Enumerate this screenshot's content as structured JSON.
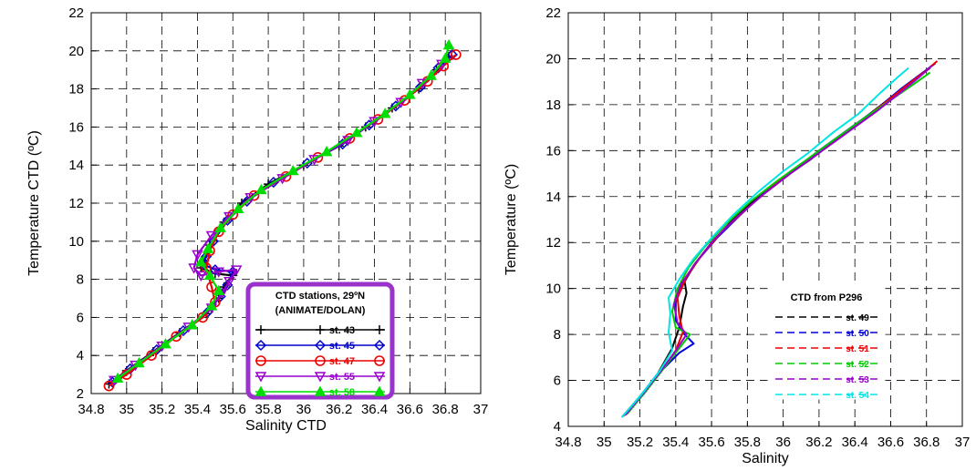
{
  "chart_data": [
    {
      "type": "scatter",
      "xlabel": "Salinity CTD",
      "ylabel": "Temperature CTD (ºC)",
      "xlim": [
        34.8,
        37
      ],
      "ylim": [
        2,
        22
      ],
      "xticks": [
        34.8,
        35,
        35.2,
        35.4,
        35.6,
        35.8,
        36,
        36.2,
        36.4,
        36.6,
        36.8,
        37
      ],
      "xtick_labels": [
        "34.8",
        "35",
        "35.2",
        "35.4",
        "35.6",
        "35.8",
        "36",
        "36.2",
        "36.4",
        "36.6",
        "36.8",
        "37"
      ],
      "yticks": [
        2,
        4,
        6,
        8,
        10,
        12,
        14,
        16,
        18,
        20,
        22
      ],
      "ytick_labels": [
        "2",
        "4",
        "6",
        "8",
        "10",
        "12",
        "14",
        "16",
        "18",
        "20",
        "22"
      ],
      "grid": true,
      "legend": {
        "title_lines": [
          "CTD stations, 29ºN",
          "(ANIMATE/DOLAN)"
        ],
        "placement": "bottom-right",
        "border_color": "#9933cc"
      },
      "series": [
        {
          "name": "st. 43",
          "color": "#000000",
          "marker": "plus",
          "points": [
            [
              34.9,
              2.5
            ],
            [
              35.0,
              3.2
            ],
            [
              35.15,
              4.2
            ],
            [
              35.3,
              5.2
            ],
            [
              35.45,
              6.2
            ],
            [
              35.52,
              7.0
            ],
            [
              35.55,
              7.6
            ],
            [
              35.6,
              8.2
            ],
            [
              35.5,
              8.3
            ],
            [
              35.42,
              8.6
            ],
            [
              35.44,
              9.0
            ],
            [
              35.47,
              9.8
            ],
            [
              35.55,
              11.0
            ],
            [
              35.65,
              12.0
            ],
            [
              35.8,
              13.0
            ],
            [
              36.0,
              14.0
            ],
            [
              36.2,
              15.0
            ],
            [
              36.35,
              16.0
            ],
            [
              36.5,
              17.0
            ],
            [
              36.65,
              18.0
            ],
            [
              36.75,
              19.0
            ],
            [
              36.82,
              19.7
            ]
          ]
        },
        {
          "name": "st. 45",
          "color": "#0000cc",
          "marker": "diamond",
          "points": [
            [
              34.92,
              2.6
            ],
            [
              35.02,
              3.3
            ],
            [
              35.17,
              4.3
            ],
            [
              35.32,
              5.3
            ],
            [
              35.46,
              6.3
            ],
            [
              35.53,
              7.1
            ],
            [
              35.57,
              7.7
            ],
            [
              35.6,
              8.4
            ],
            [
              35.5,
              8.5
            ],
            [
              35.43,
              8.8
            ],
            [
              35.45,
              9.2
            ],
            [
              35.49,
              10.0
            ],
            [
              35.57,
              11.1
            ],
            [
              35.68,
              12.1
            ],
            [
              35.83,
              13.1
            ],
            [
              36.02,
              14.1
            ],
            [
              36.22,
              15.1
            ],
            [
              36.37,
              16.1
            ],
            [
              36.52,
              17.1
            ],
            [
              36.66,
              18.1
            ],
            [
              36.76,
              19.1
            ],
            [
              36.84,
              19.8
            ]
          ]
        },
        {
          "name": "st. 47",
          "color": "#ee0000",
          "marker": "circle",
          "points": [
            [
              34.9,
              2.4
            ],
            [
              35.0,
              3.0
            ],
            [
              35.14,
              4.0
            ],
            [
              35.28,
              5.0
            ],
            [
              35.43,
              6.0
            ],
            [
              35.5,
              6.8
            ],
            [
              35.48,
              7.6
            ],
            [
              35.45,
              8.6
            ],
            [
              35.47,
              9.5
            ],
            [
              35.52,
              10.5
            ],
            [
              35.6,
              11.4
            ],
            [
              35.72,
              12.4
            ],
            [
              35.9,
              13.4
            ],
            [
              36.08,
              14.4
            ],
            [
              36.26,
              15.4
            ],
            [
              36.42,
              16.4
            ],
            [
              36.57,
              17.4
            ],
            [
              36.7,
              18.4
            ],
            [
              36.79,
              19.2
            ],
            [
              36.86,
              19.8
            ]
          ]
        },
        {
          "name": "st. 55",
          "color": "#9900cc",
          "marker": "triangle-down",
          "points": [
            [
              34.93,
              2.7
            ],
            [
              35.05,
              3.5
            ],
            [
              35.2,
              4.5
            ],
            [
              35.35,
              5.5
            ],
            [
              35.48,
              6.5
            ],
            [
              35.54,
              7.3
            ],
            [
              35.58,
              7.9
            ],
            [
              35.62,
              8.5
            ],
            [
              35.52,
              8.4
            ],
            [
              35.42,
              8.2
            ],
            [
              35.38,
              8.6
            ],
            [
              35.4,
              9.3
            ],
            [
              35.48,
              10.3
            ],
            [
              35.58,
              11.3
            ],
            [
              35.7,
              12.3
            ],
            [
              35.88,
              13.3
            ],
            [
              36.06,
              14.3
            ],
            [
              36.25,
              15.3
            ],
            [
              36.4,
              16.3
            ],
            [
              36.55,
              17.3
            ],
            [
              36.67,
              18.3
            ],
            [
              36.78,
              19.3
            ]
          ]
        },
        {
          "name": "st. 58",
          "color": "#00dd00",
          "marker": "triangle-up",
          "points": [
            [
              34.95,
              2.8
            ],
            [
              35.07,
              3.6
            ],
            [
              35.22,
              4.6
            ],
            [
              35.37,
              5.6
            ],
            [
              35.48,
              6.6
            ],
            [
              35.52,
              7.4
            ],
            [
              35.47,
              8.2
            ],
            [
              35.42,
              8.9
            ],
            [
              35.46,
              9.6
            ],
            [
              35.53,
              10.7
            ],
            [
              35.63,
              11.7
            ],
            [
              35.76,
              12.7
            ],
            [
              35.94,
              13.7
            ],
            [
              36.13,
              14.7
            ],
            [
              36.3,
              15.7
            ],
            [
              36.46,
              16.7
            ],
            [
              36.6,
              17.7
            ],
            [
              36.72,
              18.7
            ],
            [
              36.8,
              19.6
            ],
            [
              36.82,
              20.3
            ]
          ]
        }
      ]
    },
    {
      "type": "line",
      "xlabel": "Salinity",
      "ylabel": "Temperature (ºC)",
      "xlim": [
        34.8,
        37
      ],
      "ylim": [
        4,
        22
      ],
      "xticks": [
        34.8,
        35,
        35.2,
        35.4,
        35.6,
        35.8,
        36,
        36.2,
        36.4,
        36.6,
        36.8,
        37
      ],
      "xtick_labels": [
        "34.8",
        "35",
        "35.2",
        "35.4",
        "35.6",
        "35.8",
        "36",
        "36.2",
        "36.4",
        "36.6",
        "36.8",
        "37"
      ],
      "yticks": [
        4,
        6,
        8,
        10,
        12,
        14,
        16,
        18,
        20,
        22
      ],
      "ytick_labels": [
        "4",
        "6",
        "8",
        "10",
        "12",
        "14",
        "16",
        "18",
        "20",
        "22"
      ],
      "grid": true,
      "legend": {
        "title_lines": [
          "CTD from P296"
        ],
        "placement": "bottom-right"
      },
      "series": [
        {
          "name": "st. 49",
          "color": "#000000",
          "dash": "8,5",
          "points": [
            [
              35.1,
              4.4
            ],
            [
              35.2,
              5.3
            ],
            [
              35.3,
              6.3
            ],
            [
              35.38,
              7.4
            ],
            [
              35.42,
              8.3
            ],
            [
              35.44,
              9.2
            ],
            [
              35.46,
              9.8
            ],
            [
              35.45,
              10.3
            ],
            [
              35.5,
              11.0
            ],
            [
              35.6,
              12.0
            ],
            [
              35.72,
              13.0
            ],
            [
              35.86,
              14.0
            ],
            [
              36.0,
              14.8
            ],
            [
              36.15,
              15.6
            ],
            [
              36.3,
              16.5
            ],
            [
              36.45,
              17.4
            ],
            [
              36.6,
              18.3
            ],
            [
              36.72,
              19.0
            ],
            [
              36.82,
              19.6
            ]
          ]
        },
        {
          "name": "st. 50",
          "color": "#0000dd",
          "dash": "8,5",
          "points": [
            [
              35.12,
              4.5
            ],
            [
              35.22,
              5.4
            ],
            [
              35.33,
              6.5
            ],
            [
              35.42,
              7.2
            ],
            [
              35.5,
              7.6
            ],
            [
              35.45,
              8.0
            ],
            [
              35.4,
              8.6
            ],
            [
              35.4,
              9.4
            ],
            [
              35.44,
              10.2
            ],
            [
              35.52,
              11.2
            ],
            [
              35.63,
              12.2
            ],
            [
              35.76,
              13.2
            ],
            [
              35.9,
              14.2
            ],
            [
              36.05,
              15.1
            ],
            [
              36.2,
              16.0
            ],
            [
              36.36,
              16.9
            ],
            [
              36.52,
              17.8
            ],
            [
              36.66,
              18.7
            ],
            [
              36.78,
              19.4
            ],
            [
              36.85,
              19.8
            ]
          ]
        },
        {
          "name": "st. 51",
          "color": "#ee0000",
          "dash": "8,5",
          "points": [
            [
              35.11,
              4.45
            ],
            [
              35.21,
              5.35
            ],
            [
              35.32,
              6.4
            ],
            [
              35.4,
              7.3
            ],
            [
              35.44,
              8.1
            ],
            [
              35.42,
              8.8
            ],
            [
              35.41,
              9.6
            ],
            [
              35.46,
              10.5
            ],
            [
              35.55,
              11.5
            ],
            [
              35.66,
              12.5
            ],
            [
              35.8,
              13.5
            ],
            [
              35.95,
              14.5
            ],
            [
              36.1,
              15.4
            ],
            [
              36.26,
              16.3
            ],
            [
              36.42,
              17.2
            ],
            [
              36.57,
              18.1
            ],
            [
              36.7,
              18.9
            ],
            [
              36.8,
              19.5
            ],
            [
              36.86,
              19.9
            ]
          ]
        },
        {
          "name": "st. 52",
          "color": "#00cc00",
          "dash": "8,5",
          "points": [
            [
              35.13,
              4.55
            ],
            [
              35.23,
              5.5
            ],
            [
              35.34,
              6.6
            ],
            [
              35.43,
              7.5
            ],
            [
              35.48,
              8.0
            ],
            [
              35.4,
              8.3
            ],
            [
              35.38,
              9.0
            ],
            [
              35.41,
              10.0
            ],
            [
              35.47,
              10.9
            ],
            [
              35.56,
              11.8
            ],
            [
              35.68,
              12.8
            ],
            [
              35.82,
              13.8
            ],
            [
              35.97,
              14.7
            ],
            [
              36.13,
              15.6
            ],
            [
              36.29,
              16.5
            ],
            [
              36.45,
              17.4
            ],
            [
              36.6,
              18.2
            ],
            [
              36.73,
              18.9
            ],
            [
              36.82,
              19.4
            ]
          ]
        },
        {
          "name": "st. 53",
          "color": "#9900cc",
          "dash": "8,5",
          "points": [
            [
              35.12,
              4.5
            ],
            [
              35.22,
              5.45
            ],
            [
              35.33,
              6.55
            ],
            [
              35.41,
              7.4
            ],
            [
              35.46,
              8.0
            ],
            [
              35.41,
              8.5
            ],
            [
              35.39,
              9.3
            ],
            [
              35.43,
              10.2
            ],
            [
              35.51,
              11.1
            ],
            [
              35.61,
              12.1
            ],
            [
              35.74,
              13.1
            ],
            [
              35.89,
              14.1
            ],
            [
              36.04,
              15.0
            ],
            [
              36.2,
              15.9
            ],
            [
              36.36,
              16.8
            ],
            [
              36.52,
              17.7
            ],
            [
              36.65,
              18.5
            ],
            [
              36.76,
              19.2
            ],
            [
              36.83,
              19.7
            ]
          ]
        },
        {
          "name": "st. 54",
          "color": "#00e5e5",
          "dash": "8,5",
          "points": [
            [
              35.1,
              4.4
            ],
            [
              35.2,
              5.3
            ],
            [
              35.31,
              6.4
            ],
            [
              35.38,
              7.3
            ],
            [
              35.36,
              8.1
            ],
            [
              35.37,
              8.9
            ],
            [
              35.36,
              9.6
            ],
            [
              35.42,
              10.4
            ],
            [
              35.5,
              11.3
            ],
            [
              35.6,
              12.2
            ],
            [
              35.72,
              13.2
            ],
            [
              35.86,
              14.2
            ],
            [
              36.0,
              15.1
            ],
            [
              36.14,
              15.9
            ],
            [
              36.28,
              16.8
            ],
            [
              36.42,
              17.6
            ],
            [
              36.54,
              18.5
            ],
            [
              36.64,
              19.2
            ],
            [
              36.7,
              19.6
            ]
          ]
        }
      ]
    }
  ]
}
